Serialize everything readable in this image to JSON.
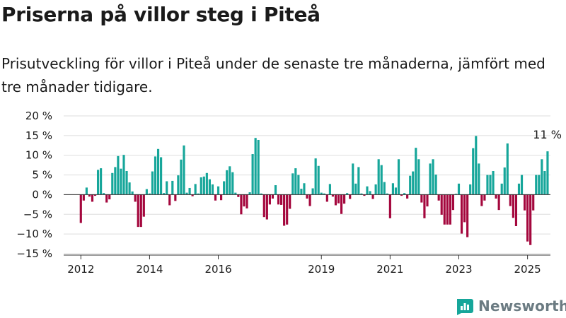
{
  "title": "Priserna på villor steg i Piteå",
  "subtitle": "Prisutveckling för villor i Piteå under de senaste tre månaderna, jämfört med tre månader tidigare.",
  "brand": {
    "name": "Newsworthy",
    "color": "#6b7b82"
  },
  "chart_data": {
    "type": "bar",
    "title": "Priserna på villor steg i Piteå",
    "subtitle": "Prisutveckling för villor i Piteå under de senaste tre månaderna, jämfört med tre månader tidigare.",
    "xlabel": "",
    "ylabel": "",
    "y_unit": "%",
    "ylim": [
      -15,
      20
    ],
    "yticks": [
      20,
      15,
      10,
      5,
      0,
      -5,
      -10,
      -15
    ],
    "ytick_labels": [
      "20 %",
      "15 %",
      "10 %",
      "5 %",
      "0 %",
      "−5 %",
      "−10 %",
      "−15 %"
    ],
    "x_range": [
      "2011-07",
      "2025-09"
    ],
    "xticks": [
      {
        "label": "2012",
        "month": "2012-01"
      },
      {
        "label": "2014",
        "month": "2014-01"
      },
      {
        "label": "2016",
        "month": "2016-01"
      },
      {
        "label": "2019",
        "month": "2019-01"
      },
      {
        "label": "2021",
        "month": "2021-01"
      },
      {
        "label": "2023",
        "month": "2023-01"
      },
      {
        "label": "2025",
        "month": "2025-01"
      }
    ],
    "grid": true,
    "colors": {
      "positive": "#16a69a",
      "negative": "#a4073d",
      "grid": "#dddddd",
      "axis": "#333333"
    },
    "last_value_label": "11 %",
    "series": [
      {
        "values": [
          {
            "month": "2012-01",
            "value": -7.2
          },
          {
            "month": "2012-02",
            "value": -1.5
          },
          {
            "month": "2012-03",
            "value": 1.8
          },
          {
            "month": "2012-04",
            "value": -0.5
          },
          {
            "month": "2012-05",
            "value": -1.8
          },
          {
            "month": "2012-06",
            "value": -0.3
          },
          {
            "month": "2012-07",
            "value": 6.3
          },
          {
            "month": "2012-08",
            "value": 6.7
          },
          {
            "month": "2012-09",
            "value": 0.4
          },
          {
            "month": "2012-10",
            "value": -2.0
          },
          {
            "month": "2012-11",
            "value": -1.2
          },
          {
            "month": "2012-12",
            "value": 5.5
          },
          {
            "month": "2013-01",
            "value": 7.0
          },
          {
            "month": "2013-02",
            "value": 9.8
          },
          {
            "month": "2013-03",
            "value": 6.6
          },
          {
            "month": "2013-04",
            "value": 10.1
          },
          {
            "month": "2013-05",
            "value": 6.0
          },
          {
            "month": "2013-06",
            "value": 3.1
          },
          {
            "month": "2013-07",
            "value": 0.8
          },
          {
            "month": "2013-08",
            "value": -1.8
          },
          {
            "month": "2013-09",
            "value": -8.2
          },
          {
            "month": "2013-10",
            "value": -8.2
          },
          {
            "month": "2013-11",
            "value": -5.6
          },
          {
            "month": "2013-12",
            "value": 1.4
          },
          {
            "month": "2014-01",
            "value": 0.3
          },
          {
            "month": "2014-02",
            "value": 5.9
          },
          {
            "month": "2014-03",
            "value": 9.7
          },
          {
            "month": "2014-04",
            "value": 11.6
          },
          {
            "month": "2014-05",
            "value": 9.5
          },
          {
            "month": "2014-06",
            "value": 0.4
          },
          {
            "month": "2014-07",
            "value": 3.4
          },
          {
            "month": "2014-08",
            "value": -2.7
          },
          {
            "month": "2014-09",
            "value": 3.5
          },
          {
            "month": "2014-10",
            "value": -1.6
          },
          {
            "month": "2014-11",
            "value": 4.9
          },
          {
            "month": "2014-12",
            "value": 8.9
          },
          {
            "month": "2015-01",
            "value": 12.5
          },
          {
            "month": "2015-02",
            "value": 0.5
          },
          {
            "month": "2015-03",
            "value": 1.7
          },
          {
            "month": "2015-04",
            "value": -0.4
          },
          {
            "month": "2015-05",
            "value": 2.7
          },
          {
            "month": "2015-06",
            "value": 0.3
          },
          {
            "month": "2015-07",
            "value": 4.4
          },
          {
            "month": "2015-08",
            "value": 4.6
          },
          {
            "month": "2015-09",
            "value": 5.5
          },
          {
            "month": "2015-10",
            "value": 3.9
          },
          {
            "month": "2015-11",
            "value": 2.6
          },
          {
            "month": "2015-12",
            "value": -1.5
          },
          {
            "month": "2016-01",
            "value": 2.1
          },
          {
            "month": "2016-02",
            "value": -1.4
          },
          {
            "month": "2016-03",
            "value": 3.4
          },
          {
            "month": "2016-04",
            "value": 6.2
          },
          {
            "month": "2016-05",
            "value": 7.2
          },
          {
            "month": "2016-06",
            "value": 5.7
          },
          {
            "month": "2016-07",
            "value": 0.5
          },
          {
            "month": "2016-08",
            "value": -0.6
          },
          {
            "month": "2016-09",
            "value": -5.0
          },
          {
            "month": "2016-10",
            "value": -3.0
          },
          {
            "month": "2016-11",
            "value": -3.5
          },
          {
            "month": "2016-12",
            "value": 0.6
          },
          {
            "month": "2017-01",
            "value": 10.3
          },
          {
            "month": "2017-02",
            "value": 14.4
          },
          {
            "month": "2017-03",
            "value": 13.9
          },
          {
            "month": "2017-04",
            "value": 0.3
          },
          {
            "month": "2017-05",
            "value": -5.7
          },
          {
            "month": "2017-06",
            "value": -6.3
          },
          {
            "month": "2017-07",
            "value": -2.5
          },
          {
            "month": "2017-08",
            "value": -1.0
          },
          {
            "month": "2017-09",
            "value": 2.4
          },
          {
            "month": "2017-10",
            "value": -2.5
          },
          {
            "month": "2017-11",
            "value": -2.6
          },
          {
            "month": "2017-12",
            "value": -7.9
          },
          {
            "month": "2018-01",
            "value": -7.6
          },
          {
            "month": "2018-02",
            "value": -3.6
          },
          {
            "month": "2018-03",
            "value": 5.4
          },
          {
            "month": "2018-04",
            "value": 6.7
          },
          {
            "month": "2018-05",
            "value": 5.0
          },
          {
            "month": "2018-06",
            "value": 1.5
          },
          {
            "month": "2018-07",
            "value": 2.9
          },
          {
            "month": "2018-08",
            "value": -1.0
          },
          {
            "month": "2018-09",
            "value": -2.9
          },
          {
            "month": "2018-10",
            "value": 1.6
          },
          {
            "month": "2018-11",
            "value": 9.2
          },
          {
            "month": "2018-12",
            "value": 7.3
          },
          {
            "month": "2019-01",
            "value": 0.5
          },
          {
            "month": "2019-02",
            "value": 0.3
          },
          {
            "month": "2019-03",
            "value": -1.8
          },
          {
            "month": "2019-04",
            "value": 2.7
          },
          {
            "month": "2019-05",
            "value": -0.5
          },
          {
            "month": "2019-06",
            "value": -2.7
          },
          {
            "month": "2019-07",
            "value": -2.2
          },
          {
            "month": "2019-08",
            "value": -4.9
          },
          {
            "month": "2019-09",
            "value": -2.3
          },
          {
            "month": "2019-10",
            "value": 0.4
          },
          {
            "month": "2019-11",
            "value": -1.1
          },
          {
            "month": "2019-12",
            "value": 7.9
          },
          {
            "month": "2020-01",
            "value": 2.8
          },
          {
            "month": "2020-02",
            "value": 7.0
          },
          {
            "month": "2020-03",
            "value": 0.3
          },
          {
            "month": "2020-04",
            "value": -0.3
          },
          {
            "month": "2020-05",
            "value": 2.1
          },
          {
            "month": "2020-06",
            "value": 0.9
          },
          {
            "month": "2020-07",
            "value": -1.1
          },
          {
            "month": "2020-08",
            "value": 2.6
          },
          {
            "month": "2020-09",
            "value": 9.0
          },
          {
            "month": "2020-10",
            "value": 7.5
          },
          {
            "month": "2020-11",
            "value": 3.2
          },
          {
            "month": "2020-12",
            "value": 0.3
          },
          {
            "month": "2021-01",
            "value": -6.0
          },
          {
            "month": "2021-02",
            "value": 2.9
          },
          {
            "month": "2021-03",
            "value": 1.8
          },
          {
            "month": "2021-04",
            "value": 9.0
          },
          {
            "month": "2021-05",
            "value": -0.3
          },
          {
            "month": "2021-06",
            "value": 0.4
          },
          {
            "month": "2021-07",
            "value": -1.0
          },
          {
            "month": "2021-08",
            "value": 4.8
          },
          {
            "month": "2021-09",
            "value": 5.9
          },
          {
            "month": "2021-10",
            "value": 11.9
          },
          {
            "month": "2021-11",
            "value": 9.0
          },
          {
            "month": "2021-12",
            "value": -2.0
          },
          {
            "month": "2022-01",
            "value": -6.0
          },
          {
            "month": "2022-02",
            "value": -3.0
          },
          {
            "month": "2022-03",
            "value": 7.9
          },
          {
            "month": "2022-04",
            "value": 9.0
          },
          {
            "month": "2022-05",
            "value": 5.1
          },
          {
            "month": "2022-06",
            "value": -1.5
          },
          {
            "month": "2022-07",
            "value": -5.1
          },
          {
            "month": "2022-08",
            "value": -7.6
          },
          {
            "month": "2022-09",
            "value": -7.6
          },
          {
            "month": "2022-10",
            "value": -7.6
          },
          {
            "month": "2022-11",
            "value": -3.9
          },
          {
            "month": "2022-12",
            "value": 0.2
          },
          {
            "month": "2023-01",
            "value": 2.8
          },
          {
            "month": "2023-02",
            "value": -9.9
          },
          {
            "month": "2023-03",
            "value": -7.0
          },
          {
            "month": "2023-04",
            "value": -10.8
          },
          {
            "month": "2023-05",
            "value": 2.6
          },
          {
            "month": "2023-06",
            "value": 11.8
          },
          {
            "month": "2023-07",
            "value": 14.9
          },
          {
            "month": "2023-08",
            "value": 7.9
          },
          {
            "month": "2023-09",
            "value": -2.9
          },
          {
            "month": "2023-10",
            "value": -1.5
          },
          {
            "month": "2023-11",
            "value": 5.0
          },
          {
            "month": "2023-12",
            "value": 5.0
          },
          {
            "month": "2024-01",
            "value": 6.0
          },
          {
            "month": "2024-02",
            "value": -1.0
          },
          {
            "month": "2024-03",
            "value": -3.9
          },
          {
            "month": "2024-04",
            "value": 2.8
          },
          {
            "month": "2024-05",
            "value": 6.9
          },
          {
            "month": "2024-06",
            "value": 13.0
          },
          {
            "month": "2024-07",
            "value": -2.9
          },
          {
            "month": "2024-08",
            "value": -5.9
          },
          {
            "month": "2024-09",
            "value": -8.0
          },
          {
            "month": "2024-10",
            "value": 2.8
          },
          {
            "month": "2024-11",
            "value": 5.0
          },
          {
            "month": "2024-12",
            "value": -4.0
          },
          {
            "month": "2025-01",
            "value": -11.9
          },
          {
            "month": "2025-02",
            "value": -12.8
          },
          {
            "month": "2025-03",
            "value": -4.0
          },
          {
            "month": "2025-04",
            "value": 5.0
          },
          {
            "month": "2025-05",
            "value": 5.0
          },
          {
            "month": "2025-06",
            "value": 9.0
          },
          {
            "month": "2025-07",
            "value": 6.0
          },
          {
            "month": "2025-08",
            "value": 11.0
          }
        ]
      }
    ]
  }
}
